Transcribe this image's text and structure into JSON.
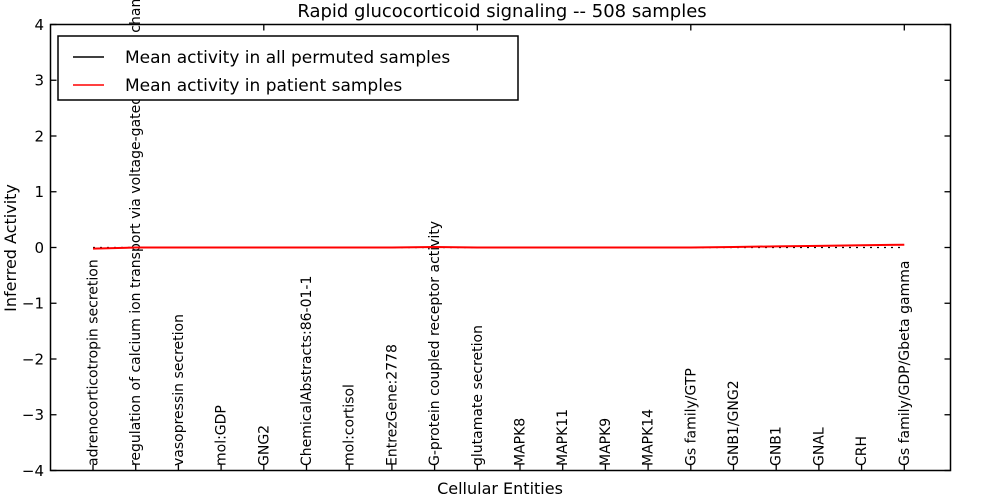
{
  "figure": {
    "title": "Rapid glucocorticoid signaling -- 508 samples",
    "xlabel": "Cellular Entities",
    "ylabel": "Inferred Activity"
  },
  "legend": {
    "position": "upper left",
    "entries": [
      {
        "label": "Mean activity in all permuted samples",
        "color": "#000000",
        "style": "solid"
      },
      {
        "label": "Mean activity in patient samples",
        "color": "#ff0000",
        "style": "solid"
      }
    ]
  },
  "chart_data": {
    "type": "line",
    "title": "Rapid glucocorticoid signaling -- 508 samples",
    "xlabel": "Cellular Entities",
    "ylabel": "Inferred Activity",
    "ylim": [
      -4,
      4
    ],
    "yticks": [
      4,
      3,
      2,
      1,
      0,
      -1,
      -2,
      -3,
      -4
    ],
    "ytick_labels": [
      "4",
      "3",
      "2",
      "1",
      "0",
      "−1",
      "−2",
      "−3",
      "−4"
    ],
    "grid": false,
    "legend_position": "upper left",
    "categories": [
      "adrenocorticotropin secretion",
      "regulation of calcium ion transport via voltage-gated calcium channel",
      "vasopressin secretion",
      "mol:GDP",
      "GNG2",
      "ChemicalAbstracts:86-01-1",
      "mol:cortisol",
      "EntrezGene:2778",
      "G-protein coupled receptor activity",
      "glutamate secretion",
      "MAPK8",
      "MAPK11",
      "MAPK9",
      "MAPK14",
      "Gs family/GTP",
      "GNB1/GNG2",
      "GNB1",
      "GNAL",
      "CRH",
      "Gs family/GDP/Gbeta gamma"
    ],
    "series": [
      {
        "name": "Mean activity in all permuted samples",
        "color": "#000000",
        "line_style": "dotted",
        "values": [
          0,
          0,
          0,
          0,
          0,
          0,
          0,
          0,
          0,
          0,
          0,
          0,
          0,
          0,
          0,
          0,
          0,
          0,
          0,
          0
        ]
      },
      {
        "name": "Mean activity in patient samples",
        "color": "#ff0000",
        "line_style": "solid",
        "values": [
          -0.02,
          0.0,
          0.0,
          0.0,
          0.0,
          0.0,
          0.0,
          0.0,
          0.01,
          0.0,
          0.0,
          0.0,
          0.0,
          0.0,
          0.0,
          0.01,
          0.02,
          0.03,
          0.04,
          0.05
        ]
      }
    ],
    "top_tick_category_indexes": [
      4,
      9,
      14,
      19
    ]
  }
}
